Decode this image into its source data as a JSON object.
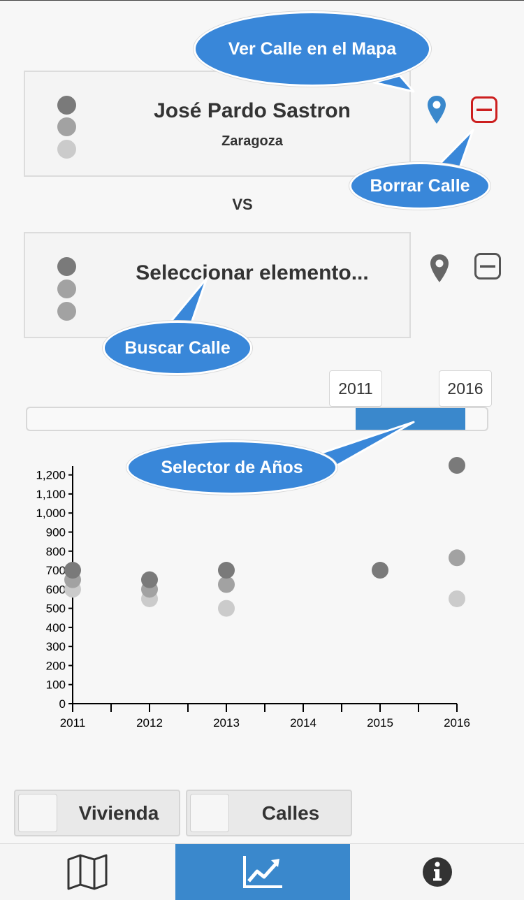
{
  "street1": {
    "name": "José Pardo Sastron",
    "city": "Zaragoza",
    "map_icon": "map-marker-icon",
    "remove_icon": "minus-square-icon"
  },
  "vs_label": "VS",
  "street2": {
    "placeholder": "Seleccionar elemento...",
    "map_icon": "map-marker-icon",
    "remove_icon": "minus-square-icon"
  },
  "callouts": {
    "map": "Ver Calle en el Mapa",
    "remove": "Borrar Calle",
    "search": "Buscar Calle",
    "years": "Selector de Años"
  },
  "year_selector": {
    "start": "2011",
    "end": "2016"
  },
  "chart_data": {
    "type": "scatter",
    "xlabel": "",
    "ylabel": "",
    "x_ticks": [
      "2011",
      "2012",
      "2013",
      "2014",
      "2015",
      "2016"
    ],
    "y_ticks": [
      "0",
      "100",
      "200",
      "300",
      "400",
      "500",
      "600",
      "700",
      "800",
      "900",
      "1,000",
      "1,100",
      "1,200"
    ],
    "ylim": [
      0,
      1200
    ],
    "series_colors": [
      "#7a7a7a",
      "#a2a2a2",
      "#cbcbcb"
    ],
    "series": [
      {
        "points": [
          [
            2011,
            700
          ],
          [
            2012,
            650
          ],
          [
            2013,
            700
          ],
          [
            2015,
            700
          ],
          [
            2016,
            1250
          ]
        ]
      },
      {
        "points": [
          [
            2011,
            650
          ],
          [
            2012,
            600
          ],
          [
            2013,
            625
          ],
          [
            2016,
            765
          ]
        ]
      },
      {
        "points": [
          [
            2011,
            600
          ],
          [
            2012,
            550
          ],
          [
            2013,
            500
          ],
          [
            2016,
            550
          ]
        ]
      }
    ]
  },
  "toggles": {
    "vivienda": "Vivienda",
    "calles": "Calles"
  },
  "tabs": [
    {
      "icon": "map-icon"
    },
    {
      "icon": "line-chart-icon",
      "active": true
    },
    {
      "icon": "info-icon"
    }
  ]
}
